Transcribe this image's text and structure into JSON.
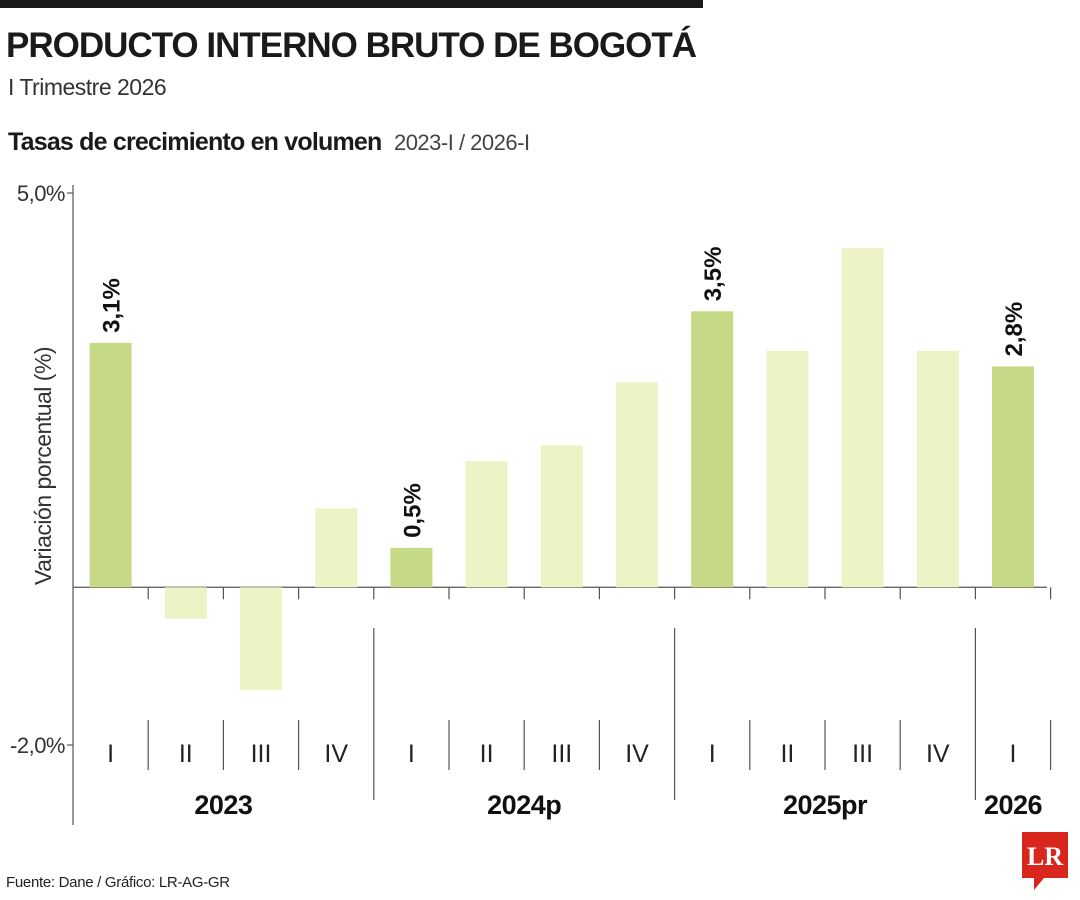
{
  "header": {
    "title": "PRODUCTO INTERNO BRUTO DE BOGOTÁ",
    "subtitle": "I Trimestre 2026",
    "section_title": "Tasas de crecimiento en volumen",
    "section_range": "2023-I / 2026-I"
  },
  "footer": {
    "source": "Fuente: Dane / Gráfico: LR-AG-GR",
    "logo_text": "LR"
  },
  "colors": {
    "highlight": "#c6d986",
    "light": "#eef3c5",
    "axis": "#555555"
  },
  "chart_data": {
    "type": "bar",
    "ylabel": "Variación porcentual (%)",
    "ylim": [
      -2.0,
      5.0
    ],
    "ytick_labels": [
      "5,0%",
      "-2,0%"
    ],
    "categories": [
      "I",
      "II",
      "III",
      "IV",
      "I",
      "II",
      "III",
      "IV",
      "I",
      "II",
      "III",
      "IV",
      "I"
    ],
    "groups": [
      {
        "label": "2023",
        "count": 4
      },
      {
        "label": "2024p",
        "count": 4
      },
      {
        "label": "2025pr",
        "count": 4
      },
      {
        "label": "2026",
        "count": 1
      }
    ],
    "values": [
      3.1,
      -0.4,
      -1.3,
      1.0,
      0.5,
      1.6,
      1.8,
      2.6,
      3.5,
      3.0,
      4.3,
      3.0,
      2.8
    ],
    "highlighted": [
      true,
      false,
      false,
      false,
      true,
      false,
      false,
      false,
      true,
      false,
      false,
      false,
      true
    ],
    "data_labels": [
      "3,1%",
      "",
      "",
      "",
      "0,5%",
      "",
      "",
      "",
      "3,5%",
      "",
      "",
      "",
      "2,8%"
    ]
  }
}
